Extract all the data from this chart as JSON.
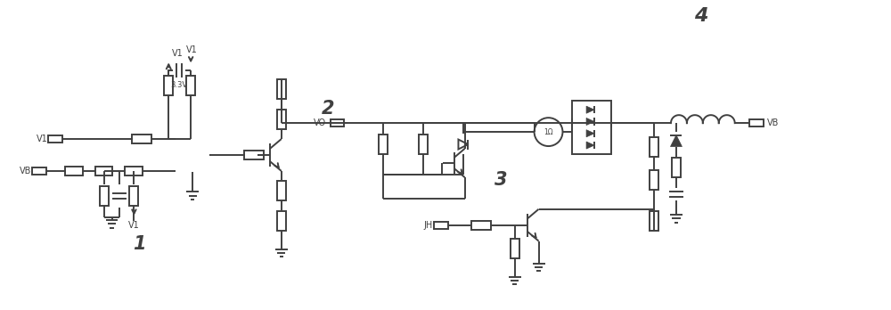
{
  "bg": "#ffffff",
  "lc": "#404040",
  "lw": 1.4,
  "figsize": [
    10.0,
    3.48
  ],
  "labels": {
    "V1a": "V1",
    "V1b": "V1",
    "V1c": "V1",
    "VBL": "VB",
    "VBR": "VB",
    "VO": "VO",
    "JH": "JH",
    "v33": "3.3V",
    "z1": "1",
    "z2": "2",
    "z3": "3",
    "z4": "4"
  }
}
